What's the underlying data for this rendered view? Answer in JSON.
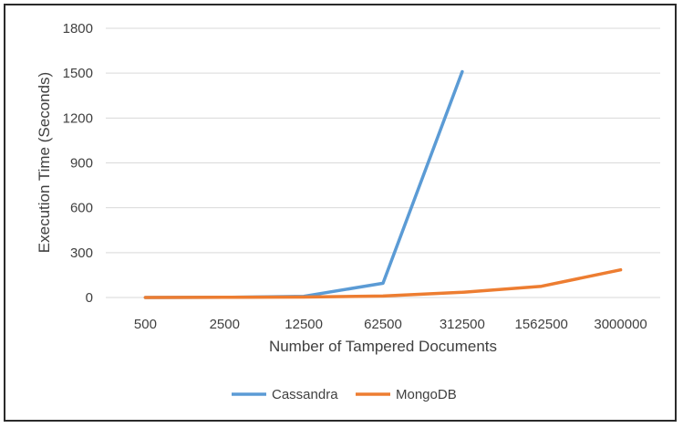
{
  "chart_data": {
    "type": "line",
    "title": "",
    "xlabel": "Number of Tampered Documents",
    "ylabel": "Execution Time (Seconds)",
    "categories": [
      "500",
      "2500",
      "12500",
      "62500",
      "312500",
      "1562500",
      "3000000"
    ],
    "ylim": [
      0,
      1800
    ],
    "yticks": [
      0,
      300,
      600,
      900,
      1200,
      1500,
      1800
    ],
    "grid": true,
    "legend_position": "bottom",
    "series": [
      {
        "name": "Cassandra",
        "color": "#5b9bd5",
        "values": [
          0,
          1,
          8,
          95,
          1510,
          null,
          null
        ]
      },
      {
        "name": "MongoDB",
        "color": "#ed7d31",
        "values": [
          0,
          1,
          3,
          10,
          35,
          75,
          185
        ]
      }
    ]
  }
}
